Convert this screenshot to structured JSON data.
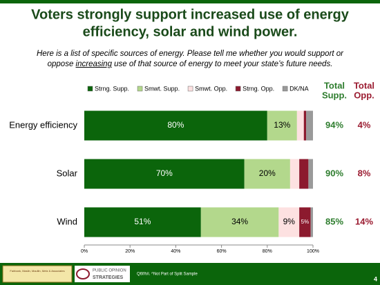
{
  "chart_data": {
    "type": "stacked-bar-horizontal",
    "title": [
      "Voters strongly support increased use of energy",
      "efficiency, solar and wind power."
    ],
    "subtitle": {
      "before": "Here is a list of specific sources of energy.  Please tell me whether you would support or oppose ",
      "underlined": "increasing",
      "after": " use of that source of energy to meet your state’s future needs."
    },
    "categories": [
      "Energy efficiency",
      "Solar",
      "Wind"
    ],
    "series": [
      {
        "name": "Strng. Supp.",
        "color": "#0b650b",
        "values": [
          80,
          70,
          51
        ],
        "value_labels": [
          "80%",
          "70%",
          "51%"
        ]
      },
      {
        "name": "Smwt. Supp.",
        "color": "#b3d88c",
        "values": [
          13,
          20,
          34
        ],
        "value_labels": [
          "13%",
          "20%",
          "34%"
        ]
      },
      {
        "name": "Smwt. Opp.",
        "color": "#fde1e1",
        "values": [
          3,
          4,
          9
        ],
        "value_labels": [
          null,
          null,
          "9%"
        ]
      },
      {
        "name": "Strng. Opp.",
        "color": "#8c1a2e",
        "values": [
          1,
          4,
          5
        ],
        "value_labels": [
          null,
          null,
          "5%"
        ]
      },
      {
        "name": "DK/NA",
        "color": "#9a9a9a",
        "values": [
          3,
          2,
          1
        ],
        "value_labels": [
          null,
          null,
          null
        ]
      }
    ],
    "xlim": [
      0,
      100
    ],
    "xticks": [
      {
        "value": 0,
        "label": "0%"
      },
      {
        "value": 20,
        "label": "20%"
      },
      {
        "value": 40,
        "label": "40%"
      },
      {
        "value": 60,
        "label": "60%"
      },
      {
        "value": 80,
        "label": "80%"
      },
      {
        "value": 100,
        "label": "100%"
      }
    ],
    "totals": [
      {
        "header": [
          "Total",
          "Supp."
        ],
        "color": "#2e7d2e",
        "values": [
          94,
          90,
          85
        ],
        "value_labels": [
          "94%",
          "90%",
          "85%"
        ]
      },
      {
        "header": [
          "Total",
          "Opp."
        ],
        "color": "#9b1c31",
        "values": [
          4,
          8,
          14
        ],
        "value_labels": [
          "4%",
          "8%",
          "14%"
        ]
      }
    ]
  },
  "footer": {
    "note": "Q6f/h/i. ^Not Part of Split Sample",
    "page": "4",
    "logo_left": "Fairbank, Maslin, Maullin, Metz & Associates",
    "logo_right": [
      "PUBLIC OPINION",
      "STRATEGIES"
    ]
  }
}
